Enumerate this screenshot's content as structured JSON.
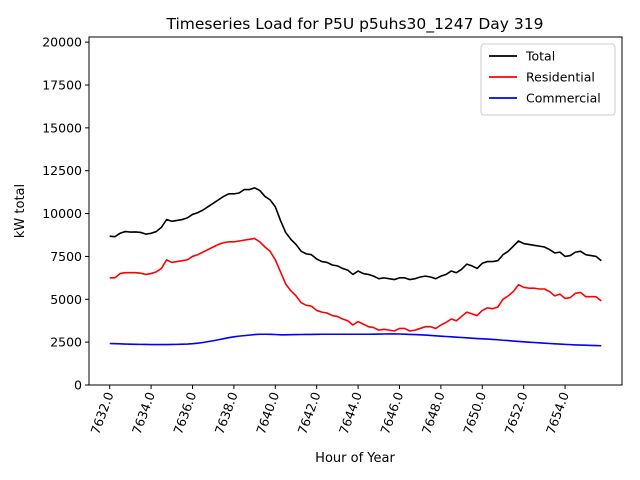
{
  "chart_data": {
    "type": "line",
    "title": "Timeseries Load for P5U p5uhs30_1247  Day 319",
    "xlabel": "Hour of Year",
    "ylabel": "kW total",
    "xlim": [
      7631.0,
      7656.75
    ],
    "ylim": [
      0,
      20300
    ],
    "grid": false,
    "legend_position": "upper right",
    "x_ticks": [
      7632,
      7634,
      7636,
      7638,
      7640,
      7642,
      7644,
      7646,
      7648,
      7650,
      7652,
      7654
    ],
    "x_tick_labels": [
      "7632.0",
      "7634.0",
      "7636.0",
      "7638.0",
      "7640.0",
      "7642.0",
      "7644.0",
      "7646.0",
      "7648.0",
      "7650.0",
      "7652.0",
      "7654.0"
    ],
    "y_ticks": [
      0,
      2500,
      5000,
      7500,
      10000,
      12500,
      15000,
      17500,
      20000
    ],
    "y_tick_labels": [
      "0",
      "2500",
      "5000",
      "7500",
      "10000",
      "12500",
      "15000",
      "17500",
      "20000"
    ],
    "x_start": 7632.0,
    "x_step": 0.25,
    "series": [
      {
        "name": "Total",
        "color": "#000000",
        "values": [
          8680,
          8650,
          8850,
          8950,
          8920,
          8930,
          8900,
          8800,
          8850,
          8950,
          9200,
          9650,
          9550,
          9600,
          9650,
          9750,
          9950,
          10050,
          10200,
          10400,
          10600,
          10800,
          11000,
          11150,
          11150,
          11200,
          11400,
          11400,
          11500,
          11350,
          11000,
          10800,
          10400,
          9600,
          8900,
          8500,
          8200,
          7800,
          7650,
          7600,
          7350,
          7200,
          7150,
          7000,
          6950,
          6800,
          6700,
          6450,
          6650,
          6500,
          6450,
          6350,
          6200,
          6250,
          6200,
          6150,
          6250,
          6250,
          6150,
          6200,
          6300,
          6350,
          6300,
          6200,
          6350,
          6450,
          6650,
          6550,
          6750,
          7050,
          6950,
          6800,
          7100,
          7200,
          7200,
          7250,
          7600,
          7800,
          8100,
          8400,
          8250,
          8200,
          8150,
          8100,
          8050,
          7900,
          7700,
          7750,
          7500,
          7550,
          7750,
          7800,
          7600,
          7550,
          7500,
          7250
        ]
      },
      {
        "name": "Residential",
        "color": "#ff0000",
        "values": [
          6250,
          6250,
          6500,
          6550,
          6550,
          6550,
          6520,
          6450,
          6500,
          6600,
          6800,
          7300,
          7150,
          7200,
          7250,
          7300,
          7500,
          7600,
          7750,
          7900,
          8050,
          8200,
          8300,
          8350,
          8350,
          8400,
          8450,
          8500,
          8550,
          8350,
          8050,
          7800,
          7300,
          6600,
          5900,
          5500,
          5200,
          4800,
          4650,
          4600,
          4350,
          4250,
          4200,
          4050,
          4000,
          3850,
          3750,
          3500,
          3700,
          3550,
          3400,
          3350,
          3200,
          3250,
          3200,
          3150,
          3300,
          3300,
          3150,
          3200,
          3300,
          3400,
          3400,
          3300,
          3500,
          3650,
          3850,
          3750,
          4000,
          4250,
          4150,
          4050,
          4350,
          4500,
          4450,
          4550,
          5000,
          5200,
          5450,
          5850,
          5700,
          5650,
          5650,
          5600,
          5600,
          5450,
          5200,
          5300,
          5050,
          5100,
          5350,
          5400,
          5150,
          5150,
          5150,
          4900
        ]
      },
      {
        "name": "Commercial",
        "color": "#0000ff",
        "values": [
          2420,
          2410,
          2400,
          2390,
          2380,
          2375,
          2370,
          2365,
          2360,
          2360,
          2360,
          2360,
          2365,
          2370,
          2380,
          2390,
          2410,
          2440,
          2480,
          2530,
          2580,
          2640,
          2700,
          2760,
          2810,
          2850,
          2880,
          2910,
          2940,
          2960,
          2960,
          2955,
          2945,
          2930,
          2930,
          2935,
          2940,
          2945,
          2950,
          2950,
          2955,
          2960,
          2960,
          2960,
          2960,
          2960,
          2960,
          2960,
          2960,
          2960,
          2960,
          2965,
          2970,
          2975,
          2980,
          2980,
          2975,
          2965,
          2950,
          2940,
          2930,
          2910,
          2890,
          2870,
          2850,
          2830,
          2810,
          2790,
          2770,
          2750,
          2730,
          2710,
          2695,
          2680,
          2660,
          2640,
          2610,
          2590,
          2565,
          2540,
          2520,
          2500,
          2480,
          2460,
          2440,
          2420,
          2400,
          2385,
          2370,
          2355,
          2340,
          2330,
          2320,
          2310,
          2300,
          2290
        ]
      }
    ]
  }
}
